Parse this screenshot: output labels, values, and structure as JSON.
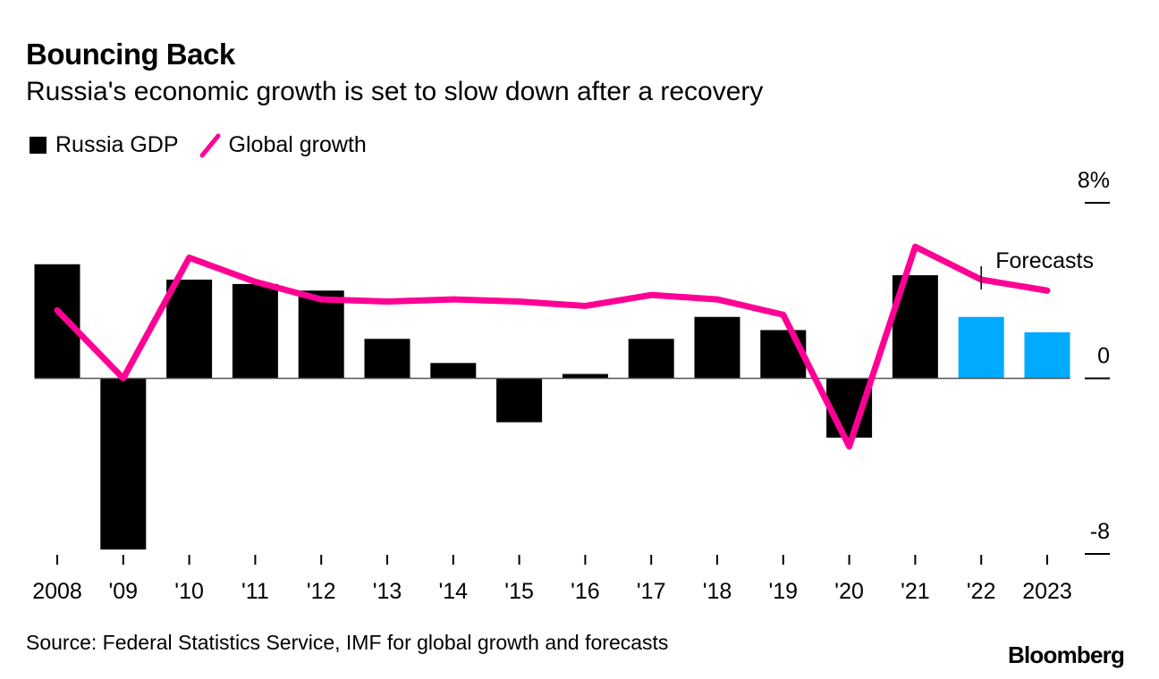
{
  "header": {
    "title": "Bouncing Back",
    "subtitle": "Russia's economic growth is set to slow down after a recovery"
  },
  "legend": {
    "items": [
      {
        "label": "Russia GDP",
        "color": "#000000",
        "shape": "square"
      },
      {
        "label": "Global growth",
        "color": "#ff0095",
        "shape": "line"
      }
    ]
  },
  "footer": {
    "source": "Source: Federal Statistics Service, IMF for global growth and forecasts",
    "logo": "Bloomberg"
  },
  "chart_data": {
    "type": "bar",
    "title": "Bouncing Back",
    "subtitle": "Russia's economic growth is set to slow down after a recovery",
    "xlabel": "",
    "ylabel": "",
    "categories": [
      "2008",
      "'09",
      "'10",
      "'11",
      "'12",
      "'13",
      "'14",
      "'15",
      "'16",
      "'17",
      "'18",
      "'19",
      "'20",
      "'21",
      "'22",
      "2023"
    ],
    "ylim": [
      -8,
      8
    ],
    "yticks": [
      {
        "value": 8,
        "label": "8%"
      },
      {
        "value": 0,
        "label": "0"
      },
      {
        "value": -8,
        "label": "-8"
      }
    ],
    "grid": false,
    "legend_position": "top-left",
    "series": [
      {
        "name": "Russia GDP",
        "type": "bar",
        "color": "#000000",
        "forecast_color": "#00aaff",
        "values": [
          5.2,
          -7.8,
          4.5,
          4.3,
          4.0,
          1.8,
          0.7,
          -2.0,
          0.2,
          1.8,
          2.8,
          2.2,
          -2.7,
          4.7,
          2.8,
          2.1
        ],
        "forecast": [
          false,
          false,
          false,
          false,
          false,
          false,
          false,
          false,
          false,
          false,
          false,
          false,
          false,
          false,
          true,
          true
        ]
      },
      {
        "name": "Global growth",
        "type": "line",
        "color": "#ff0095",
        "values": [
          3.1,
          0.0,
          5.5,
          4.4,
          3.6,
          3.5,
          3.6,
          3.5,
          3.3,
          3.8,
          3.6,
          2.9,
          -3.1,
          6.0,
          4.5,
          4.0
        ]
      }
    ],
    "annotations": [
      {
        "text": "Forecasts",
        "at_category": "'22"
      }
    ]
  }
}
